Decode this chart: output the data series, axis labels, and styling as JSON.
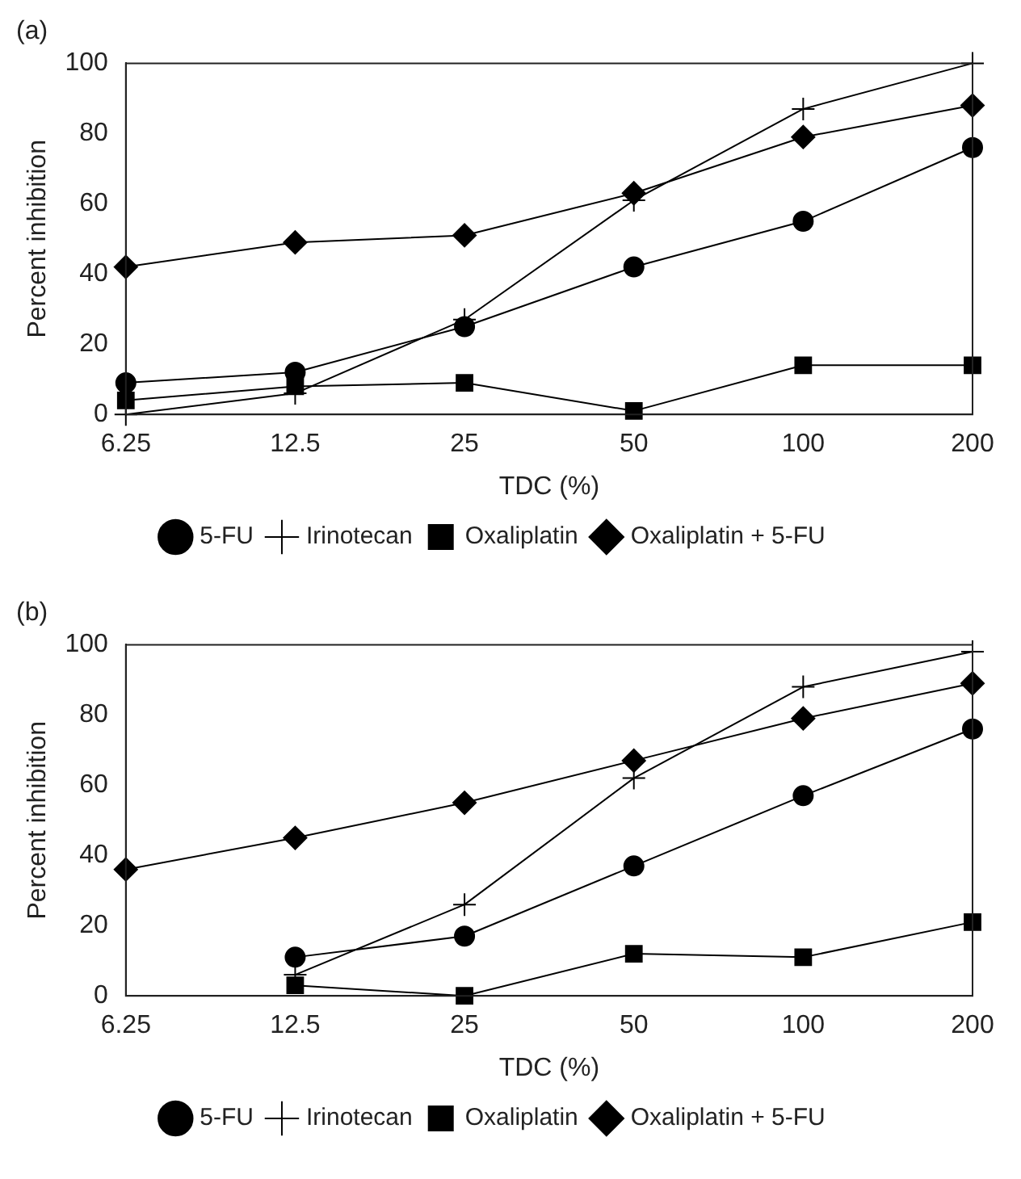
{
  "chart_data": [
    {
      "type": "line",
      "title": "(a)",
      "xlabel": "TDC (%)",
      "ylabel": "Percent inhibition",
      "categories": [
        "6.25",
        "12.5",
        "25",
        "50",
        "100",
        "200"
      ],
      "ylim": [
        0,
        100
      ],
      "yticks": [
        0,
        20,
        40,
        60,
        80,
        100
      ],
      "legend": "bottom",
      "series": [
        {
          "name": "5-FU",
          "color": "#000000",
          "marker": "circle",
          "values": [
            9,
            12,
            25,
            42,
            55,
            76
          ]
        },
        {
          "name": "Irinotecan",
          "color": "#000000",
          "marker": "cross",
          "values": [
            0,
            6,
            27,
            61,
            87,
            100
          ]
        },
        {
          "name": "Oxaliplatin",
          "color": "#000000",
          "marker": "square",
          "values": [
            4,
            8,
            9,
            1,
            14,
            14
          ]
        },
        {
          "name": "Oxaliplatin + 5-FU",
          "color": "#000000",
          "marker": "diamond",
          "values": [
            42,
            49,
            51,
            63,
            79,
            88
          ]
        }
      ]
    },
    {
      "type": "line",
      "title": "(b)",
      "xlabel": "TDC (%)",
      "ylabel": "Percent inhibition",
      "categories": [
        "6.25",
        "12.5",
        "25",
        "50",
        "100",
        "200"
      ],
      "ylim": [
        0,
        100
      ],
      "yticks": [
        0,
        20,
        40,
        60,
        80,
        100
      ],
      "legend": "bottom",
      "series": [
        {
          "name": "5-FU",
          "color": "#000000",
          "marker": "circle",
          "values": [
            null,
            11,
            17,
            37,
            57,
            76
          ]
        },
        {
          "name": "Irinotecan",
          "color": "#000000",
          "marker": "cross",
          "values": [
            null,
            6,
            26,
            62,
            88,
            98
          ]
        },
        {
          "name": "Oxaliplatin",
          "color": "#000000",
          "marker": "square",
          "values": [
            null,
            3,
            0,
            12,
            11,
            21
          ]
        },
        {
          "name": "Oxaliplatin + 5-FU",
          "color": "#000000",
          "marker": "diamond",
          "values": [
            36,
            45,
            55,
            67,
            79,
            89
          ]
        }
      ]
    }
  ]
}
